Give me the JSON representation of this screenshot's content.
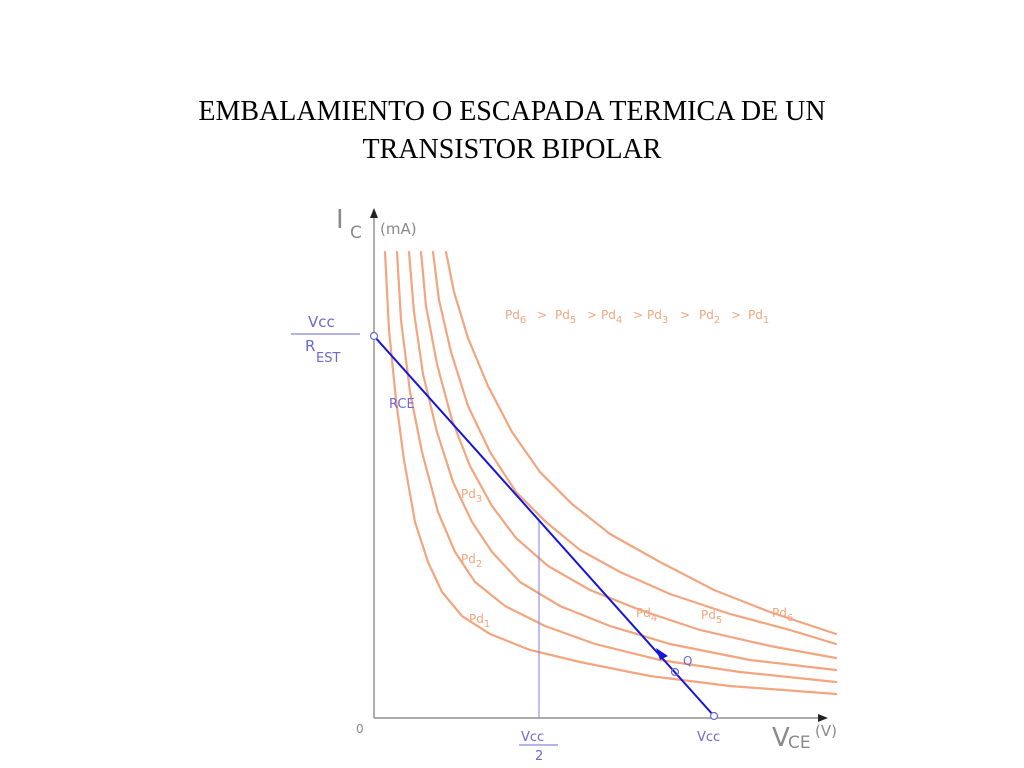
{
  "title": {
    "line1": "EMBALAMIENTO O ESCAPADA TERMICA DE UN",
    "line2": "TRANSISTOR BIPOLAR"
  },
  "colors": {
    "curve": "#f2a57e",
    "load_line": "#1414dc",
    "guide": "#7f7fd6",
    "axis": "#7a7a7a",
    "axis_label": "#8a8a8a",
    "node_label": "#6a6ad0"
  },
  "axes": {
    "y_main": "I",
    "y_sub": "C",
    "y_unit": "(mA)",
    "x_main": "V",
    "x_sub": "CE",
    "x_unit": "(V)",
    "origin": "0"
  },
  "y_intercept": {
    "numerator": "Vcc",
    "den_main": "R",
    "den_sub": "EST"
  },
  "x_mid": {
    "numerator": "Vcc",
    "denominator": "2"
  },
  "x_end": "Vcc",
  "load_line_label": "RCE",
  "q_label": "Q",
  "relation": [
    {
      "main": "Pd",
      "sub": "6"
    },
    {
      "sep": ">"
    },
    {
      "main": "Pd",
      "sub": "5"
    },
    {
      "sep": ">"
    },
    {
      "main": "Pd",
      "sub": "4"
    },
    {
      "sep": ">"
    },
    {
      "main": "Pd",
      "sub": "3"
    },
    {
      "sep": ">"
    },
    {
      "main": "Pd",
      "sub": "2"
    },
    {
      "sep": ">"
    },
    {
      "main": "Pd",
      "sub": "1"
    }
  ],
  "curves": [
    {
      "main": "Pd",
      "sub": "1"
    },
    {
      "main": "Pd",
      "sub": "2"
    },
    {
      "main": "Pd",
      "sub": "3"
    },
    {
      "main": "Pd",
      "sub": "4"
    },
    {
      "main": "Pd",
      "sub": "5"
    },
    {
      "main": "Pd",
      "sub": "6"
    }
  ]
}
